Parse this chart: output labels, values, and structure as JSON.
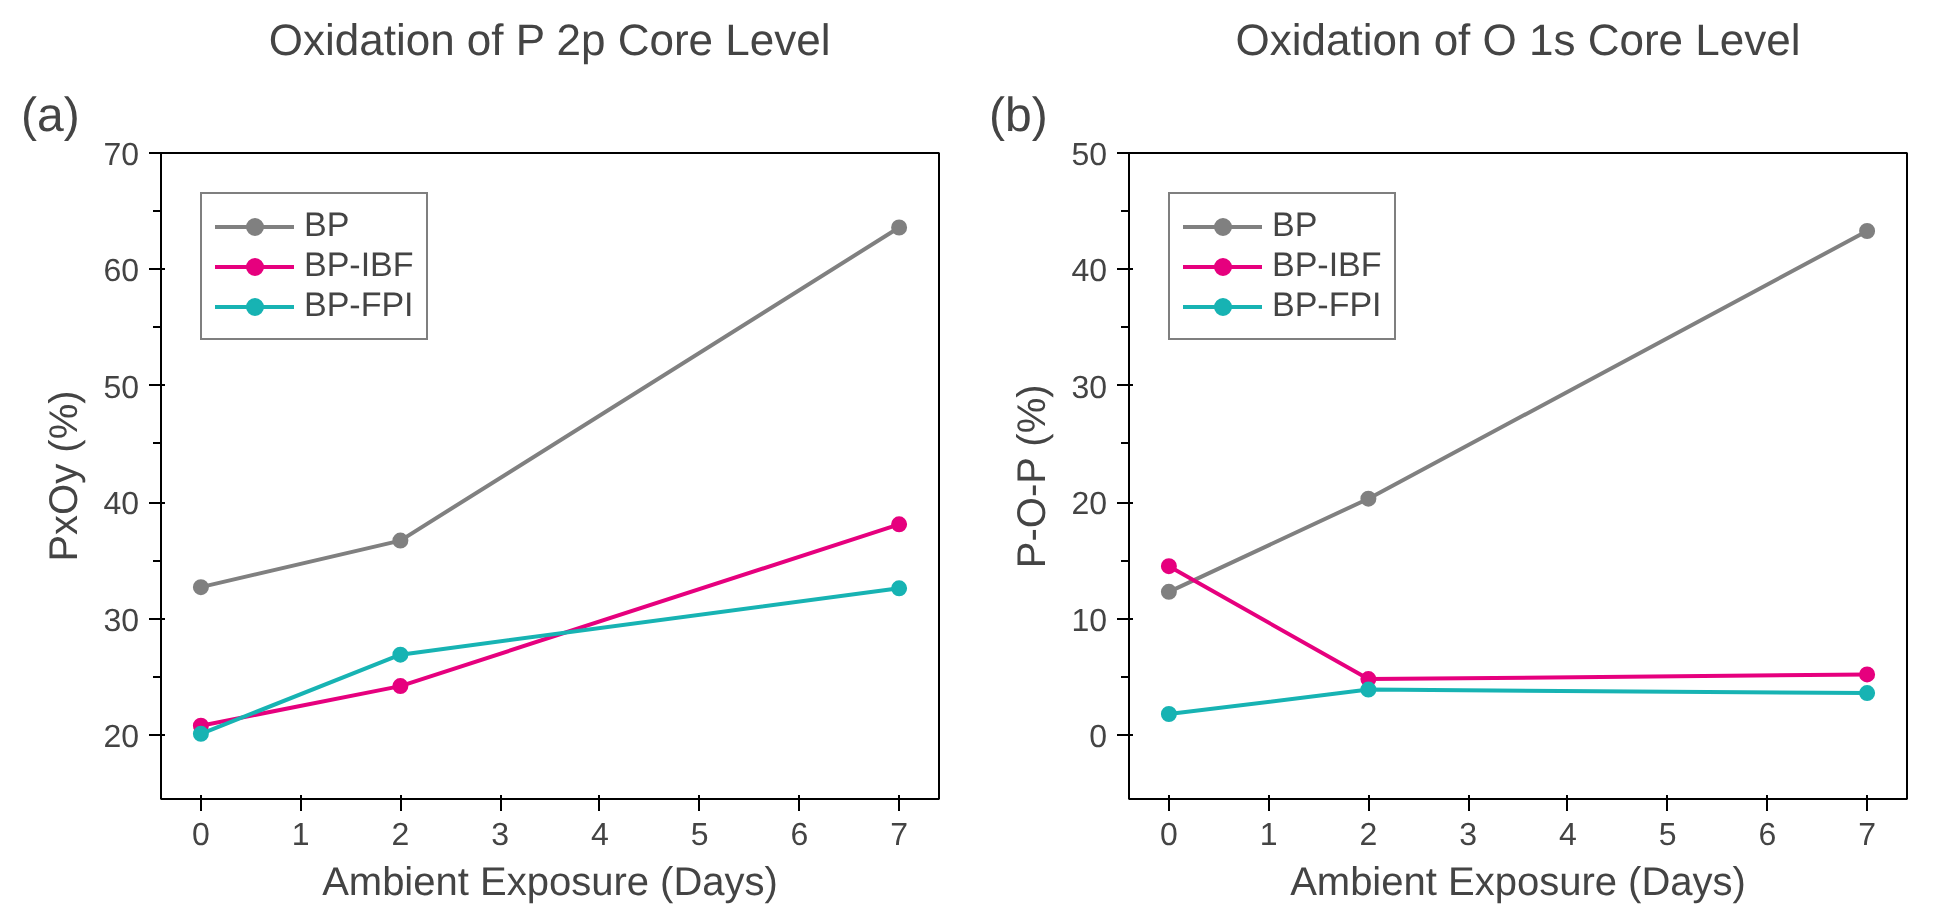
{
  "chart_data": [
    {
      "type": "line",
      "title": "Oxidation of P 2p Core Level",
      "xlabel": "Ambient Exposure (Days)",
      "ylabel": "PxOy (%)",
      "annotations": [
        "(a)"
      ],
      "x": [
        0,
        2,
        7
      ],
      "xlim": [
        -0.4,
        7.4
      ],
      "xticks": [
        0,
        1,
        2,
        3,
        4,
        5,
        6,
        7
      ],
      "ylim": [
        14.5,
        70
      ],
      "yticks": [
        20,
        30,
        40,
        50,
        60,
        70
      ],
      "grid": false,
      "legend": "top left",
      "marker": "circle",
      "line_style": "solid",
      "series": [
        {
          "name": "BP",
          "color": "#808080",
          "values": [
            32.7,
            36.7,
            63.6
          ]
        },
        {
          "name": "BP-IBF",
          "color": "#e6007e",
          "values": [
            20.8,
            24.2,
            38.1
          ]
        },
        {
          "name": "BP-FPI",
          "color": "#17b3b3",
          "values": [
            20.1,
            26.9,
            32.6
          ]
        }
      ]
    },
    {
      "type": "line",
      "title": "Oxidation of O 1s Core Level",
      "xlabel": "Ambient Exposure (Days)",
      "ylabel": "P-O-P (%)",
      "annotations": [
        "(b)"
      ],
      "x": [
        0,
        2,
        7
      ],
      "xlim": [
        -0.4,
        7.4
      ],
      "xticks": [
        0,
        1,
        2,
        3,
        4,
        5,
        6,
        7
      ],
      "ylim": [
        -5.5,
        50
      ],
      "yticks": [
        0,
        10,
        20,
        30,
        40,
        50
      ],
      "grid": false,
      "legend": "top left",
      "marker": "circle",
      "line_style": "solid",
      "series": [
        {
          "name": "BP",
          "color": "#808080",
          "values": [
            12.3,
            20.3,
            43.3
          ]
        },
        {
          "name": "BP-IBF",
          "color": "#e6007e",
          "values": [
            14.5,
            4.8,
            5.2
          ]
        },
        {
          "name": "BP-FPI",
          "color": "#17b3b3",
          "values": [
            1.8,
            3.9,
            3.6
          ]
        }
      ]
    }
  ]
}
